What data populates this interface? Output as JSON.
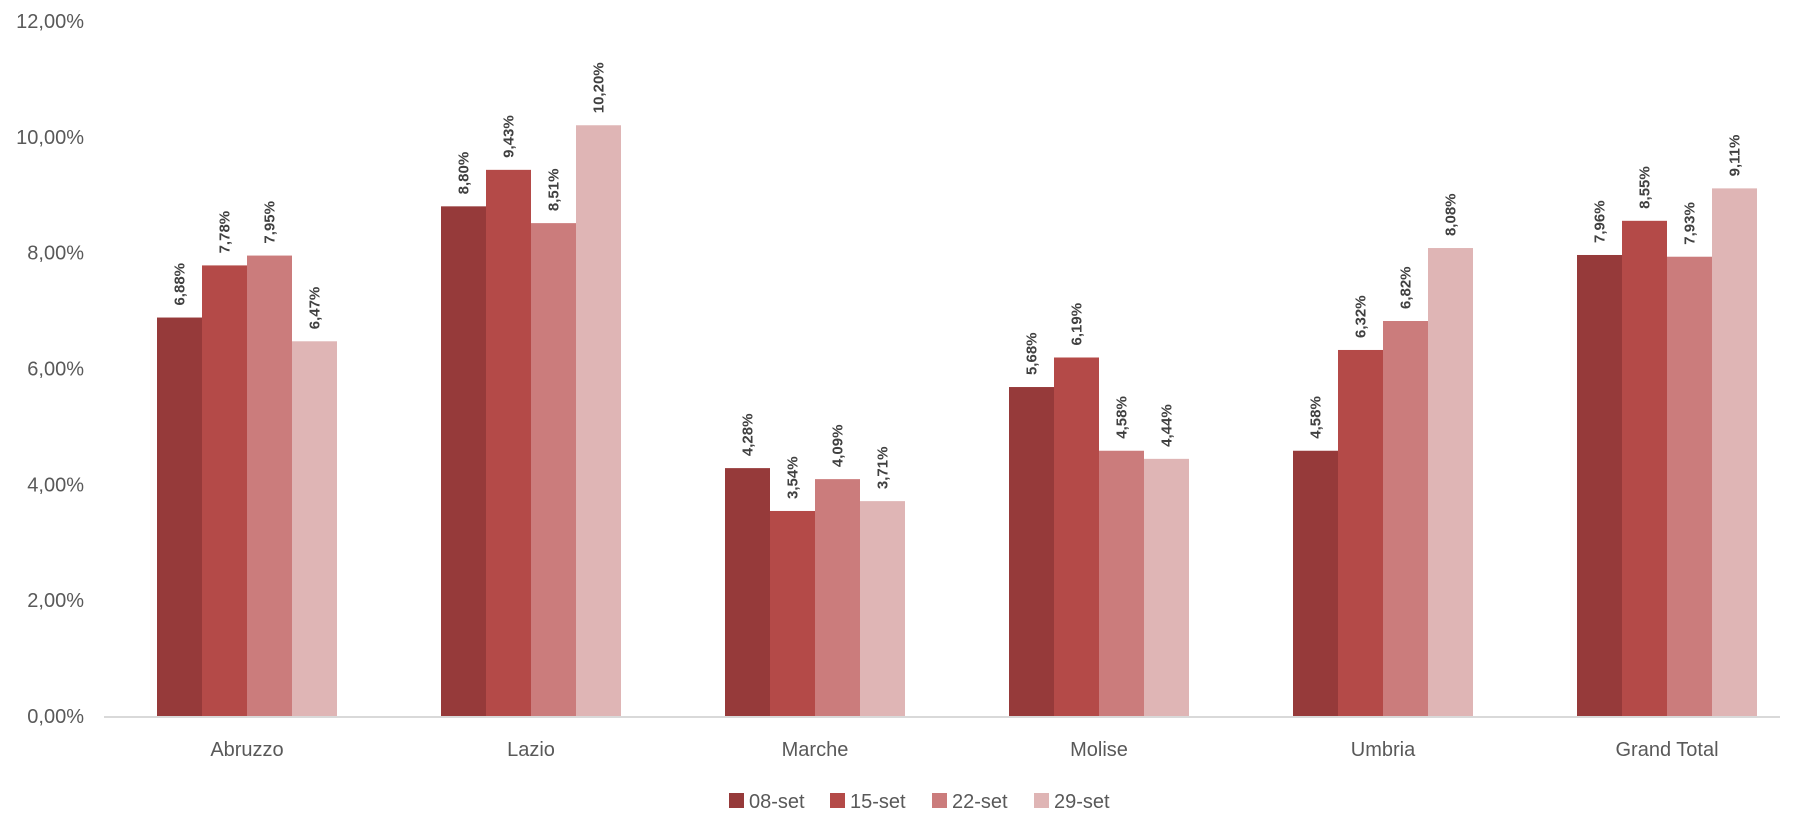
{
  "chart_data": {
    "type": "bar",
    "title": "",
    "xlabel": "",
    "ylabel": "",
    "categories": [
      "Abruzzo",
      "Lazio",
      "Marche",
      "Molise",
      "Umbria",
      "Grand Total"
    ],
    "series": [
      {
        "name": "08-set",
        "color": "#963A3A",
        "values": [
          6.88,
          8.8,
          4.28,
          5.68,
          4.58,
          7.96
        ],
        "labels": [
          "6,88%",
          "8,80%",
          "4,28%",
          "5,68%",
          "4,58%",
          "7,96%"
        ]
      },
      {
        "name": "15-set",
        "color": "#B44A48",
        "values": [
          7.78,
          9.43,
          3.54,
          6.19,
          6.32,
          8.55
        ],
        "labels": [
          "7,78%",
          "9,43%",
          "3,54%",
          "6,19%",
          "6,32%",
          "8,55%"
        ]
      },
      {
        "name": "22-set",
        "color": "#CB7C7C",
        "values": [
          7.95,
          8.51,
          4.09,
          4.58,
          6.82,
          7.93
        ],
        "labels": [
          "7,95%",
          "8,51%",
          "4,09%",
          "4,58%",
          "6,82%",
          "7,93%"
        ]
      },
      {
        "name": "29-set",
        "color": "#DFB5B5",
        "values": [
          6.47,
          10.2,
          3.71,
          4.44,
          8.08,
          9.11
        ],
        "labels": [
          "6,47%",
          "10,20%",
          "3,71%",
          "4,44%",
          "8,08%",
          "9,11%"
        ]
      }
    ],
    "ylim": [
      0,
      12
    ],
    "yticks": [
      0,
      2,
      4,
      6,
      8,
      10,
      12
    ],
    "ytick_labels": [
      "0,00%",
      "2,00%",
      "4,00%",
      "6,00%",
      "8,00%",
      "10,00%",
      "12,00%"
    ],
    "grid": false,
    "legend_position": "bottom",
    "data_labels_rotated": true
  }
}
